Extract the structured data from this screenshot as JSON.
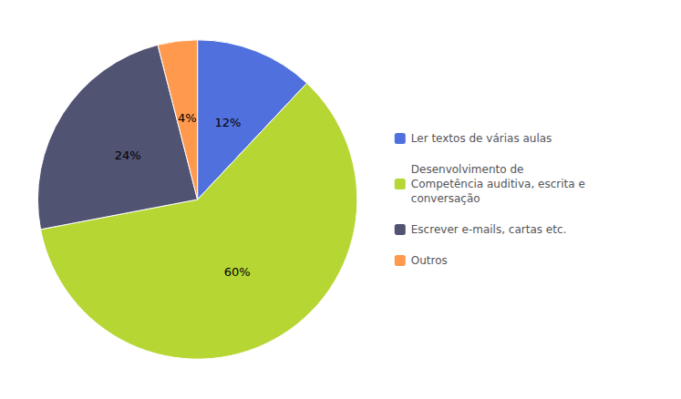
{
  "chart_data": {
    "type": "pie",
    "categories": [
      "Ler textos de várias aulas",
      "Desenvolvimento de\nCompetência auditiva, escrita e\nconversação",
      "Escrever e-mails, cartas etc.",
      "Outros"
    ],
    "values": [
      12,
      60,
      24,
      4
    ],
    "value_labels": [
      "12%",
      "60%",
      "24%",
      "4%"
    ],
    "data_labels": true,
    "legend": "right"
  }
}
